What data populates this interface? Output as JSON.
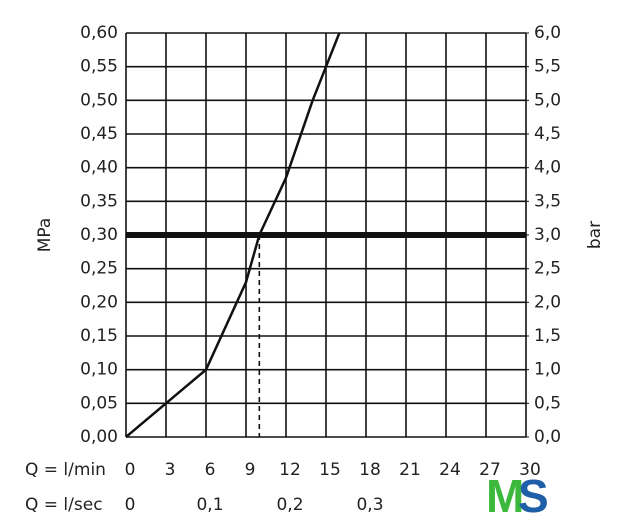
{
  "chart_data": {
    "type": "line",
    "x": [
      0,
      3,
      6,
      9,
      10,
      12,
      14,
      15,
      16
    ],
    "series": [
      {
        "color": "#111111",
        "values": [
          0,
          0.05,
          0.1,
          0.23,
          0.3,
          0.385,
          0.5,
          0.55,
          0.6
        ]
      }
    ],
    "xlim": [
      0,
      30
    ],
    "xticks": [
      0,
      3,
      6,
      9,
      12,
      15,
      18,
      21,
      24,
      27,
      30
    ],
    "xlabel": "Q = l/min",
    "x2lim": [
      0,
      0.5
    ],
    "x2ticks": [
      0,
      {
        "value": 0.1,
        "label": "0,1"
      },
      {
        "value": 0.2,
        "label": "0,2"
      },
      {
        "value": 0.3,
        "label": "0,3"
      }
    ],
    "x2label": "Q = l/sec",
    "ylim": [
      0,
      0.6
    ],
    "yticks": [
      {
        "value": 0,
        "label": "0,00"
      },
      {
        "value": 0.05,
        "label": "0,05"
      },
      {
        "value": 0.1,
        "label": "0,10"
      },
      {
        "value": 0.15,
        "label": "0,15"
      },
      {
        "value": 0.2,
        "label": "0,20"
      },
      {
        "value": 0.25,
        "label": "0,25"
      },
      {
        "value": 0.3,
        "label": "0,30"
      },
      {
        "value": 0.35,
        "label": "0,35"
      },
      {
        "value": 0.4,
        "label": "0,40"
      },
      {
        "value": 0.45,
        "label": "0,45"
      },
      {
        "value": 0.5,
        "label": "0,50"
      },
      {
        "value": 0.55,
        "label": "0,55"
      },
      {
        "value": 0.6,
        "label": "0,60"
      }
    ],
    "ylabel": "MPa",
    "y2lim": [
      0,
      6
    ],
    "y2ticks": [
      {
        "value": 0,
        "label": "0,0"
      },
      {
        "value": 0.5,
        "label": "0,5"
      },
      {
        "value": 1,
        "label": "1,0"
      },
      {
        "value": 1.5,
        "label": "1,5"
      },
      {
        "value": 2,
        "label": "2,0"
      },
      {
        "value": 2.5,
        "label": "2,5"
      },
      {
        "value": 3,
        "label": "3,0"
      },
      {
        "value": 3.5,
        "label": "3,5"
      },
      {
        "value": 4,
        "label": "4,0"
      },
      {
        "value": 4.5,
        "label": "4,5"
      },
      {
        "value": 5,
        "label": "5,0"
      },
      {
        "value": 5.5,
        "label": "5,5"
      },
      {
        "value": 6,
        "label": "6,0"
      }
    ],
    "y2label": "bar",
    "grid": true,
    "reference_line": {
      "y": 0.3,
      "x": 10
    }
  },
  "logo": {
    "first": "M",
    "second": "S"
  }
}
